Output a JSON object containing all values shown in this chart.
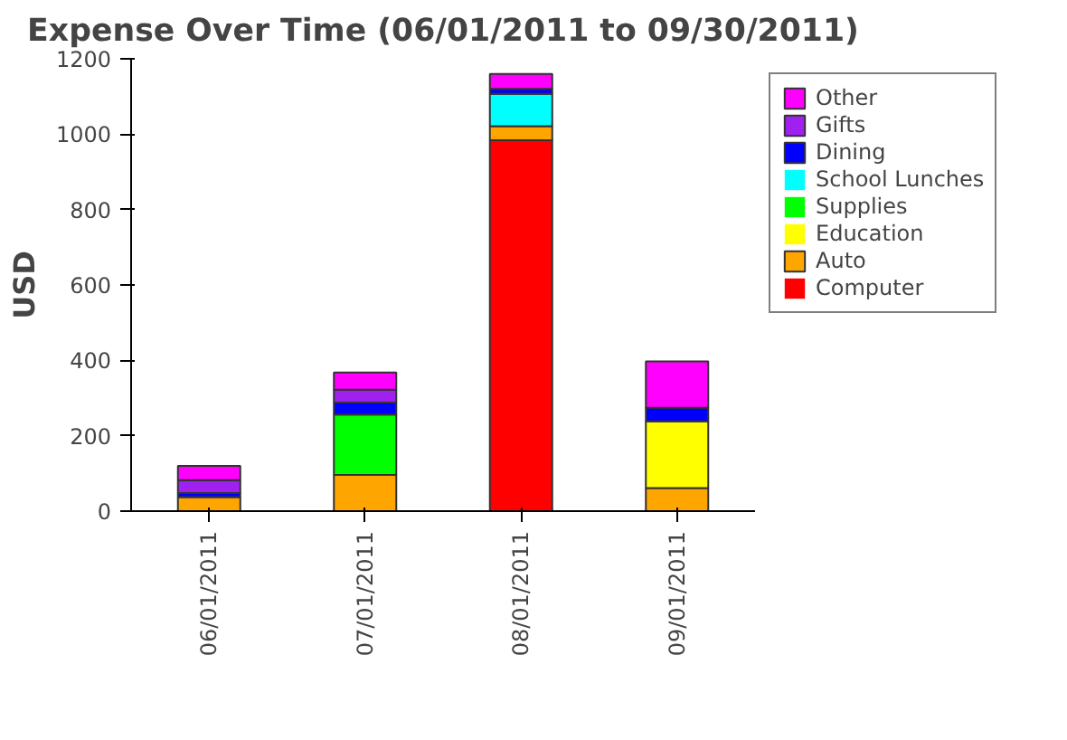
{
  "chart_data": {
    "type": "bar",
    "title": "Expense Over Time (06/01/2011 to 09/30/2011)",
    "ylabel": "USD",
    "categories": [
      "06/01/2011",
      "07/01/2011",
      "08/01/2011",
      "09/01/2011"
    ],
    "stacked": true,
    "ylim": [
      0,
      1200
    ],
    "yticks": [
      0,
      200,
      400,
      600,
      800,
      1000,
      1200
    ],
    "grid": false,
    "legend": "right",
    "series": [
      {
        "name": "Computer",
        "color": "#ff0000",
        "values": [
          0,
          0,
          984,
          0
        ]
      },
      {
        "name": "Auto",
        "color": "#ffa500",
        "values": [
          37,
          96,
          37,
          61
        ]
      },
      {
        "name": "Education",
        "color": "#ffff00",
        "values": [
          0,
          0,
          0,
          177
        ]
      },
      {
        "name": "Supplies",
        "color": "#00ff00",
        "values": [
          0,
          160,
          0,
          0
        ]
      },
      {
        "name": "School Lunches",
        "color": "#00ffff",
        "values": [
          0,
          0,
          86,
          0
        ]
      },
      {
        "name": "Dining",
        "color": "#0000ff",
        "values": [
          11,
          32,
          13,
          36
        ]
      },
      {
        "name": "Gifts",
        "color": "#a020f0",
        "values": [
          34,
          34,
          0,
          0
        ]
      },
      {
        "name": "Other",
        "color": "#ff00ff",
        "values": [
          38,
          46,
          40,
          123
        ]
      }
    ]
  }
}
